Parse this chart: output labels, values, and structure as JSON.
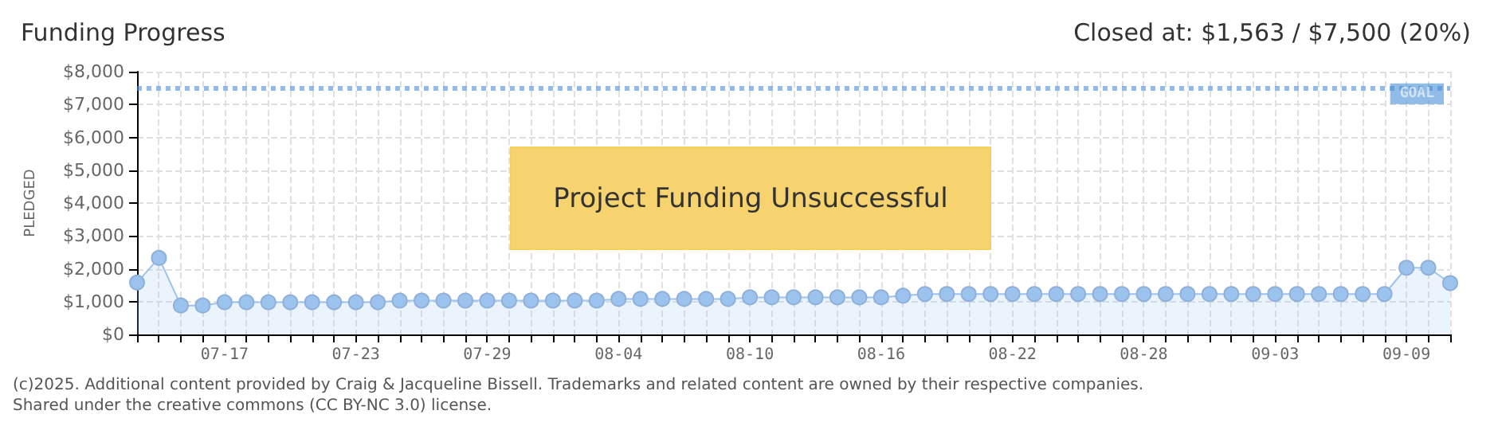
{
  "chart_data": {
    "type": "area",
    "title": "Funding Progress",
    "subtitle": "Closed at: $1,563 / $7,500 (20%)",
    "ylabel": "PLEDGED",
    "annotations": [
      "Project Funding Unsuccessful",
      "(c)2025. Additional content provided by Craig & Jacqueline Bissell. Trademarks and related content are owned by their respective companies.",
      "Shared under the creative commons (CC BY-NC 3.0) license."
    ],
    "x": [
      "--07-13",
      "--07-14",
      "--07-15",
      "--07-16",
      "--07-17",
      "--07-18",
      "--07-19",
      "--07-20",
      "--07-21",
      "--07-22",
      "--07-23",
      "--07-24",
      "--07-25",
      "--07-26",
      "--07-27",
      "--07-28",
      "--07-29",
      "--07-30",
      "--07-31",
      "--08-01",
      "--08-02",
      "--08-03",
      "--08-04",
      "--08-05",
      "--08-06",
      "--08-07",
      "--08-08",
      "--08-09",
      "--08-10",
      "--08-11",
      "--08-12",
      "--08-13",
      "--08-14",
      "--08-15",
      "--08-16",
      "--08-17",
      "--08-18",
      "--08-19",
      "--08-20",
      "--08-21",
      "--08-22",
      "--08-23",
      "--08-24",
      "--08-25",
      "--08-26",
      "--08-27",
      "--08-28",
      "--08-29",
      "--08-30",
      "--08-31",
      "--09-01",
      "--09-02",
      "--09-03",
      "--09-04",
      "--09-05",
      "--09-06",
      "--09-07",
      "--09-08",
      "--09-09",
      "--09-10",
      "--09-11"
    ],
    "series": [
      {
        "color": "#9cc3ee",
        "values": [
          1580,
          2330,
          880,
          880,
          980,
          980,
          980,
          980,
          980,
          980,
          980,
          980,
          1030,
          1030,
          1030,
          1030,
          1030,
          1030,
          1030,
          1030,
          1030,
          1030,
          1080,
          1080,
          1080,
          1080,
          1080,
          1080,
          1130,
          1130,
          1130,
          1130,
          1130,
          1130,
          1130,
          1180,
          1230,
          1230,
          1230,
          1230,
          1230,
          1230,
          1230,
          1230,
          1230,
          1230,
          1230,
          1230,
          1230,
          1230,
          1230,
          1230,
          1230,
          1230,
          1230,
          1230,
          1230,
          1230,
          2030,
          2030,
          1563
        ]
      }
    ],
    "xlim": [
      "--07-13",
      "--09-11"
    ],
    "xticks": [
      {
        "value": "--07-17",
        "label": "07-17"
      },
      {
        "value": "--07-23",
        "label": "07-23"
      },
      {
        "value": "--07-29",
        "label": "07-29"
      },
      {
        "value": "--08-04",
        "label": "08-04"
      },
      {
        "value": "--08-10",
        "label": "08-10"
      },
      {
        "value": "--08-16",
        "label": "08-16"
      },
      {
        "value": "--08-22",
        "label": "08-22"
      },
      {
        "value": "--08-28",
        "label": "08-28"
      },
      {
        "value": "--09-03",
        "label": "09-03"
      },
      {
        "value": "--09-09",
        "label": "09-09"
      }
    ],
    "ylim": [
      0,
      8000
    ],
    "yticks": [
      {
        "value": 0,
        "label": "$0"
      },
      {
        "value": 1000,
        "label": "$1,000"
      },
      {
        "value": 2000,
        "label": "$2,000"
      },
      {
        "value": 3000,
        "label": "$3,000"
      },
      {
        "value": 4000,
        "label": "$4,000"
      },
      {
        "value": 5000,
        "label": "$5,000"
      },
      {
        "value": 6000,
        "label": "$6,000"
      },
      {
        "value": 7000,
        "label": "$7,000"
      },
      {
        "value": 8000,
        "label": "$8,000"
      }
    ],
    "ref_lines": [
      {
        "axis": "y",
        "value": 7500,
        "label": "GOAL",
        "color": "#4a90d9",
        "line_style": "dotted"
      }
    ],
    "grid": true,
    "marker": "circle",
    "line_style": "solid"
  }
}
